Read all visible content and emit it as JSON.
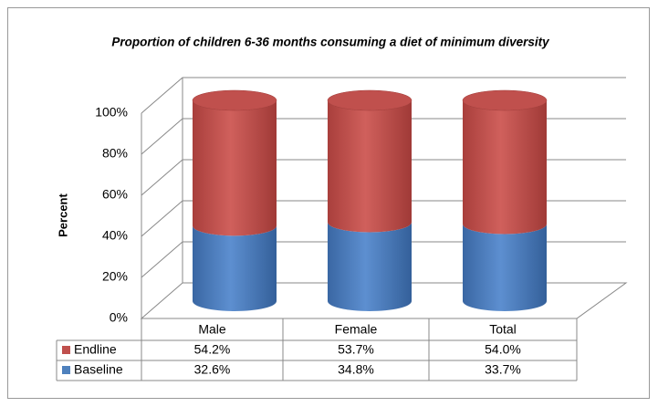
{
  "chart_data": {
    "type": "stacked100_cylinder",
    "title": "Proportion of children 6-36 months consuming a  diet of minimum diversity",
    "y_label": "Percent",
    "categories": [
      "Male",
      "Female",
      "Total"
    ],
    "series": [
      {
        "name": "Baseline",
        "color": "#4f81bd",
        "values": [
          32.6,
          34.8,
          33.7
        ],
        "value_labels": [
          "32.6%",
          "34.8%",
          "33.7%"
        ]
      },
      {
        "name": "Endline",
        "color": "#c0504d",
        "values": [
          54.2,
          53.7,
          54.0
        ],
        "value_labels": [
          "54.2%",
          "53.7%",
          "54.0%"
        ]
      }
    ],
    "ylim": [
      0,
      100
    ],
    "yticks": [
      {
        "value": 0,
        "label": "0%"
      },
      {
        "value": 20,
        "label": "20%"
      },
      {
        "value": 40,
        "label": "40%"
      },
      {
        "value": 60,
        "label": "60%"
      },
      {
        "value": 80,
        "label": "80%"
      },
      {
        "value": 100,
        "label": "100%"
      }
    ],
    "grid": true
  }
}
